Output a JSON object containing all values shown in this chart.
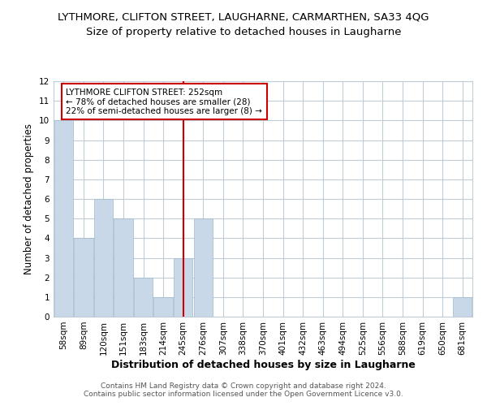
{
  "title": "LYTHMORE, CLIFTON STREET, LAUGHARNE, CARMARTHEN, SA33 4QG",
  "subtitle": "Size of property relative to detached houses in Laugharne",
  "xlabel": "Distribution of detached houses by size in Laugharne",
  "ylabel": "Number of detached properties",
  "bar_labels": [
    "58sqm",
    "89sqm",
    "120sqm",
    "151sqm",
    "183sqm",
    "214sqm",
    "245sqm",
    "276sqm",
    "307sqm",
    "338sqm",
    "370sqm",
    "401sqm",
    "432sqm",
    "463sqm",
    "494sqm",
    "525sqm",
    "556sqm",
    "588sqm",
    "619sqm",
    "650sqm",
    "681sqm"
  ],
  "bar_values": [
    10,
    4,
    6,
    5,
    2,
    1,
    3,
    5,
    0,
    0,
    0,
    0,
    0,
    0,
    0,
    0,
    0,
    0,
    0,
    0,
    1
  ],
  "bar_color": "#c8d8e8",
  "bar_edge_color": "#a0b8cc",
  "highlight_index": 6,
  "highlight_line_color": "#cc0000",
  "annotation_title": "LYTHMORE CLIFTON STREET: 252sqm",
  "annotation_line1": "← 78% of detached houses are smaller (28)",
  "annotation_line2": "22% of semi-detached houses are larger (8) →",
  "annotation_box_color": "#ffffff",
  "annotation_box_edge": "#cc0000",
  "ylim": [
    0,
    12
  ],
  "yticks": [
    0,
    1,
    2,
    3,
    4,
    5,
    6,
    7,
    8,
    9,
    10,
    11,
    12
  ],
  "footer1": "Contains HM Land Registry data © Crown copyright and database right 2024.",
  "footer2": "Contains public sector information licensed under the Open Government Licence v3.0.",
  "background_color": "#ffffff",
  "grid_color": "#c0ccd8",
  "title_fontsize": 9.5,
  "subtitle_fontsize": 9.5,
  "tick_fontsize": 7.5,
  "ylabel_fontsize": 8.5,
  "xlabel_fontsize": 9,
  "annotation_fontsize": 7.5,
  "footer_fontsize": 6.5
}
